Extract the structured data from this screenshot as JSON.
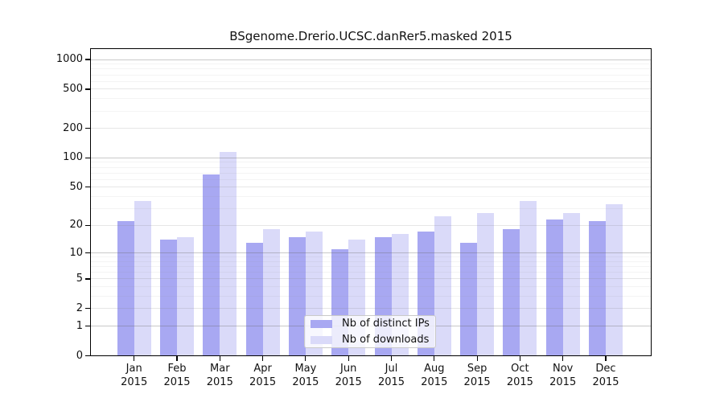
{
  "chart_data": {
    "type": "bar",
    "title": "BSgenome.Drerio.UCSC.danRer5.masked 2015",
    "xlabel": "",
    "ylabel": "",
    "categories": [
      "Jan",
      "Feb",
      "Mar",
      "Apr",
      "May",
      "Jun",
      "Jul",
      "Aug",
      "Sep",
      "Oct",
      "Nov",
      "Dec"
    ],
    "x_year": "2015",
    "series": [
      {
        "name": "Nb of distinct IPs",
        "color": "#a8a8f2",
        "values": [
          22,
          14,
          68,
          13,
          15,
          11,
          15,
          17,
          13,
          18,
          23,
          22
        ]
      },
      {
        "name": "Nb of downloads",
        "color": "#dadaf9",
        "values": [
          36,
          15,
          114,
          18,
          17,
          14,
          16,
          25,
          27,
          36,
          27,
          33
        ]
      }
    ],
    "y_scale": "log10(1+v)",
    "ylim": [
      0,
      1000
    ],
    "y_ticks": [
      0,
      1,
      2,
      5,
      10,
      20,
      50,
      100,
      200,
      500,
      1000
    ],
    "y_major_gridlines": [
      1,
      10,
      100,
      1000
    ],
    "y_mid_gridlines": [
      2,
      5,
      20,
      50,
      200,
      500
    ],
    "y_minor_gridlines": [
      3,
      4,
      6,
      7,
      8,
      9,
      30,
      40,
      60,
      70,
      80,
      90,
      300,
      400,
      600,
      700,
      800,
      900
    ],
    "grid": true,
    "legend_position": "bottom-center-inside"
  },
  "legend": {
    "items": [
      {
        "label": "Nb of distinct IPs",
        "series": "distinct_ips"
      },
      {
        "label": "Nb of downloads",
        "series": "downloads"
      }
    ]
  },
  "colors": {
    "distinct_ips": "#a8a8f2",
    "downloads": "#dadaf9",
    "grid_major": "rgba(100,100,100,0.35)",
    "grid_mid": "rgba(130,130,130,0.20)",
    "grid_minor": "rgba(150,150,150,0.10)",
    "axis": "#000000",
    "text": "#111111"
  }
}
